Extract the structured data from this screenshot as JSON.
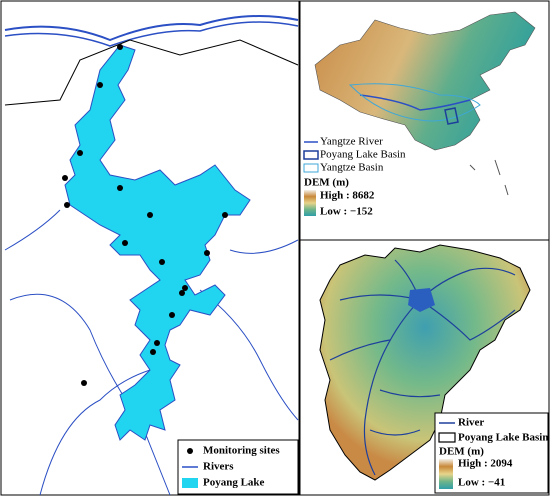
{
  "left_map": {
    "legend": {
      "items": [
        "Monitoring sites",
        "Rivers",
        "Poyang Lake"
      ]
    }
  },
  "top_right_map": {
    "legend": {
      "items": [
        "Yangtze River",
        "Poyang Lake Basin",
        "Yangtze Basin"
      ]
    },
    "dem": {
      "title": "DEM (m)",
      "high": "High : 8682",
      "low": "Low : −152"
    }
  },
  "bottom_right_map": {
    "legend": {
      "items": [
        "River",
        "Poyang Lake Basin"
      ]
    },
    "dem": {
      "title": "DEM (m)",
      "high": "High : 2094",
      "low": "Low : −41"
    }
  }
}
